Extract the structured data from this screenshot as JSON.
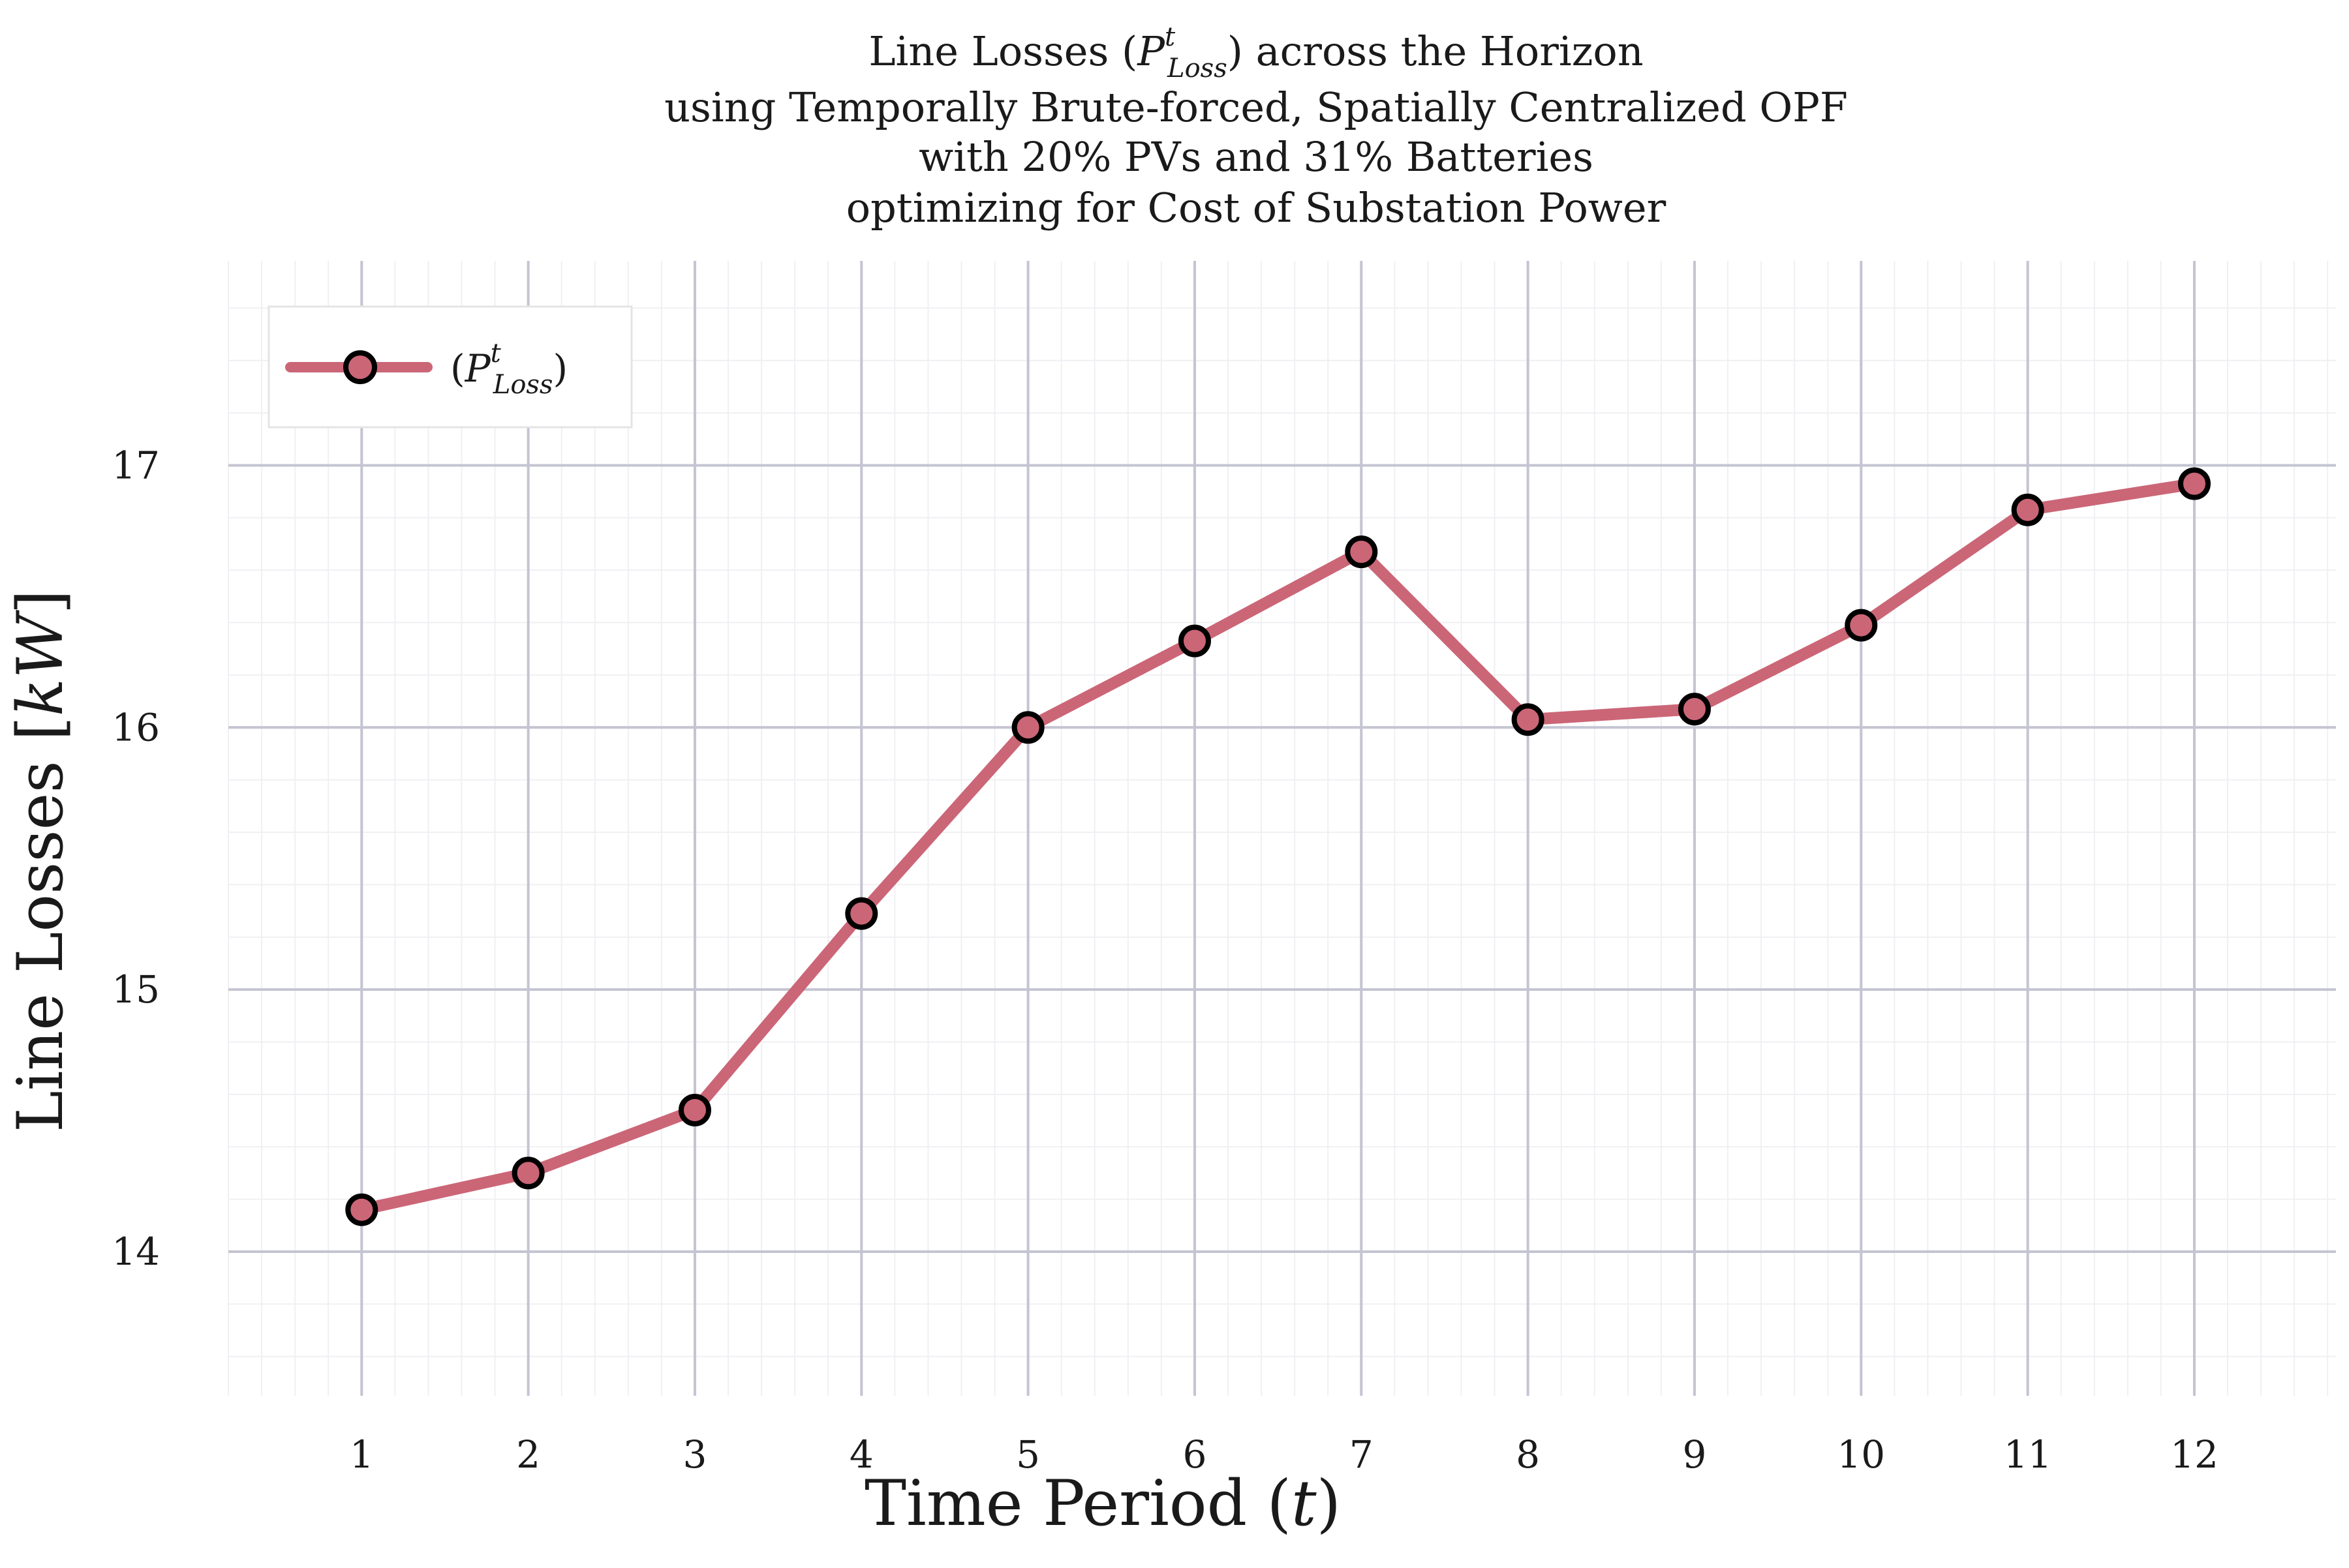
{
  "chart_data": {
    "type": "line",
    "title_lines": [
      "Line Losses (P",
      "using Temporally Brute-forced, Spatially Centralized OPF",
      "with 20% PVs and 31% Batteries",
      "optimizing for Cost of Substation Power"
    ],
    "title_first_line": {
      "prefix": "Line Losses (",
      "var": "P",
      "sup": "t",
      "sub": "Loss",
      "suffix": ") across the Horizon"
    },
    "xlabel": "Time Period (t)",
    "xlabel_parts": {
      "prefix": "Time Period (",
      "var": "t",
      "suffix": ")"
    },
    "ylabel": "Line Losses [kW]",
    "ylabel_parts": {
      "prefix": "Line Losses [",
      "var": "kW",
      "suffix": "]"
    },
    "x": [
      1,
      2,
      3,
      4,
      5,
      6,
      7,
      8,
      9,
      10,
      11,
      12
    ],
    "xticks": [
      "1",
      "2",
      "3",
      "4",
      "5",
      "6",
      "7",
      "8",
      "9",
      "10",
      "11",
      "12"
    ],
    "yticks": [
      "14",
      "15",
      "16",
      "17"
    ],
    "ytick_values": [
      14,
      15,
      16,
      17
    ],
    "xlim": [
      0.2,
      12.85
    ],
    "ylim": [
      13.45,
      17.78
    ],
    "grid": true,
    "legend_position": "top-left",
    "series": [
      {
        "name": "(P_Loss^t)",
        "legend_parts": {
          "open": "(",
          "var": "P",
          "sup": "t",
          "sub": "Loss",
          "close": ")"
        },
        "color": "#cb6677",
        "marker_edge": "#000000",
        "values": [
          14.16,
          14.3,
          14.54,
          15.29,
          16.0,
          16.33,
          16.67,
          16.03,
          16.07,
          16.39,
          16.83,
          16.93
        ]
      }
    ]
  }
}
